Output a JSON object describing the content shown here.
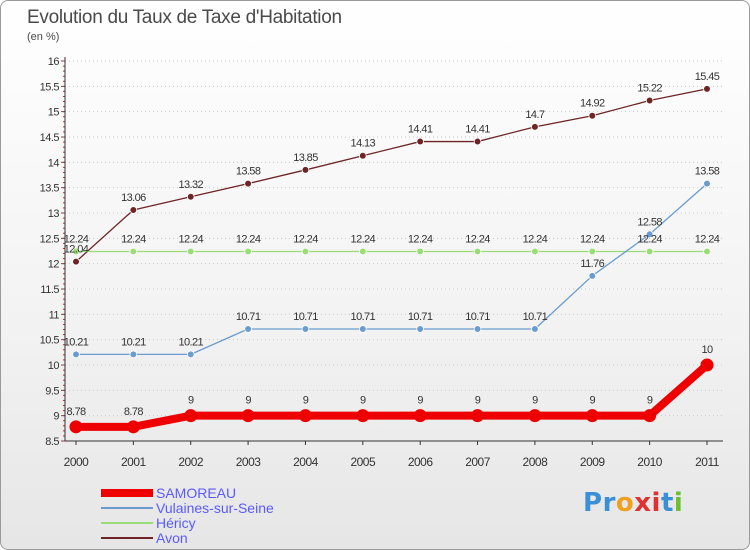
{
  "chart_data": {
    "type": "line",
    "title": "Evolution du Taux de Taxe d'Habitation",
    "subtitle": "(en %)",
    "categories": [
      "2000",
      "2001",
      "2002",
      "2003",
      "2004",
      "2005",
      "2006",
      "2007",
      "2008",
      "2009",
      "2010",
      "2011"
    ],
    "ylim": [
      8.5,
      16
    ],
    "yticks": [
      8.5,
      9,
      9.5,
      10,
      10.5,
      11,
      11.5,
      12,
      12.5,
      13,
      13.5,
      14,
      14.5,
      15,
      15.5,
      16
    ],
    "ytick_labels": [
      "8.5",
      "9",
      "9.5",
      "10",
      "10.5",
      "11",
      "11.5",
      "12",
      "12.5",
      "13",
      "13.5",
      "14",
      "14.5",
      "15",
      "15.5",
      "16"
    ],
    "grid": "horizontal dotted",
    "legend_position": "bottom-left",
    "series": [
      {
        "name": "SAMOREAU",
        "color": "#ee0000",
        "values": [
          8.78,
          8.78,
          9,
          9,
          9,
          9,
          9,
          9,
          9,
          9,
          9,
          10
        ],
        "labels": [
          "8.78",
          "8.78",
          "9",
          "9",
          "9",
          "9",
          "9",
          "9",
          "9",
          "9",
          "9",
          "10"
        ]
      },
      {
        "name": "Vulaines-sur-Seine",
        "color": "#6a9ccf",
        "values": [
          10.21,
          10.21,
          10.21,
          10.71,
          10.71,
          10.71,
          10.71,
          10.71,
          10.71,
          11.76,
          12.58,
          13.58
        ],
        "labels": [
          "10.21",
          "10.21",
          "10.21",
          "10.71",
          "10.71",
          "10.71",
          "10.71",
          "10.71",
          "10.71",
          "11.76",
          "12.58",
          "13.58"
        ]
      },
      {
        "name": "Héricy",
        "color": "#99dd77",
        "values": [
          12.24,
          12.24,
          12.24,
          12.24,
          12.24,
          12.24,
          12.24,
          12.24,
          12.24,
          12.24,
          12.24,
          12.24
        ],
        "labels": [
          "12.24",
          "12.24",
          "12.24",
          "12.24",
          "12.24",
          "12.24",
          "12.24",
          "12.24",
          "12.24",
          "12.24",
          "12.24",
          "12.24"
        ]
      },
      {
        "name": "Avon",
        "color": "#6e2424",
        "values": [
          12.04,
          13.06,
          13.32,
          13.58,
          13.85,
          14.13,
          14.41,
          14.41,
          14.7,
          14.92,
          15.22,
          15.45
        ],
        "labels": [
          "12.04",
          "13.06",
          "13.32",
          "13.58",
          "13.85",
          "14.13",
          "14.41",
          "14.41",
          "14.7",
          "14.92",
          "15.22",
          "15.45"
        ]
      }
    ]
  },
  "logo": {
    "text": "Proxiti",
    "letters": [
      "P",
      "r",
      "o",
      "x",
      "i",
      "t",
      "i"
    ],
    "colors": [
      "#3b8fd6",
      "#3b8fd6",
      "#f0a020",
      "#e03030",
      "#e03030",
      "#3b8fd6",
      "#6bbf30"
    ]
  }
}
